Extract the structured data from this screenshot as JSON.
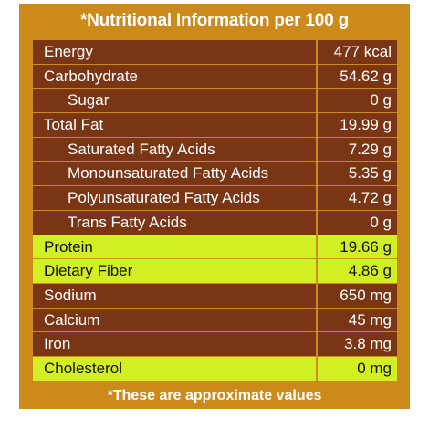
{
  "title": "*Nutritional Information per 100 g",
  "footer": "*These are approximate values",
  "colors": {
    "panel": "#cc8a1a",
    "row": "#7a3515",
    "highlight": "#d2ef24"
  },
  "rows": [
    {
      "name": "Energy",
      "value": "477 kcal",
      "sub": false,
      "highlight": false
    },
    {
      "name": "Carbohydrate",
      "value": "54.62 g",
      "sub": false,
      "highlight": false
    },
    {
      "name": "Sugar",
      "value": "0 g",
      "sub": true,
      "highlight": false
    },
    {
      "name": "Total Fat",
      "value": "19.99 g",
      "sub": false,
      "highlight": false
    },
    {
      "name": "Saturated Fatty Acids",
      "value": "7.29 g",
      "sub": true,
      "highlight": false
    },
    {
      "name": "Monounsaturated Fatty Acids",
      "value": "5.35 g",
      "sub": true,
      "highlight": false
    },
    {
      "name": "Polyunsaturated Fatty Acids",
      "value": "4.72 g",
      "sub": true,
      "highlight": false
    },
    {
      "name": "Trans Fatty Acids",
      "value": "0 g",
      "sub": true,
      "highlight": false
    },
    {
      "name": "Protein",
      "value": "19.66 g",
      "sub": false,
      "highlight": true
    },
    {
      "name": "Dietary Fiber",
      "value": "4.86 g",
      "sub": false,
      "highlight": true
    },
    {
      "name": "Sodium",
      "value": "650 mg",
      "sub": false,
      "highlight": false
    },
    {
      "name": "Calcium",
      "value": "45 mg",
      "sub": false,
      "highlight": false
    },
    {
      "name": "Iron",
      "value": "3.8 mg",
      "sub": false,
      "highlight": false
    },
    {
      "name": "Cholesterol",
      "value": "0 mg",
      "sub": false,
      "highlight": true
    }
  ]
}
